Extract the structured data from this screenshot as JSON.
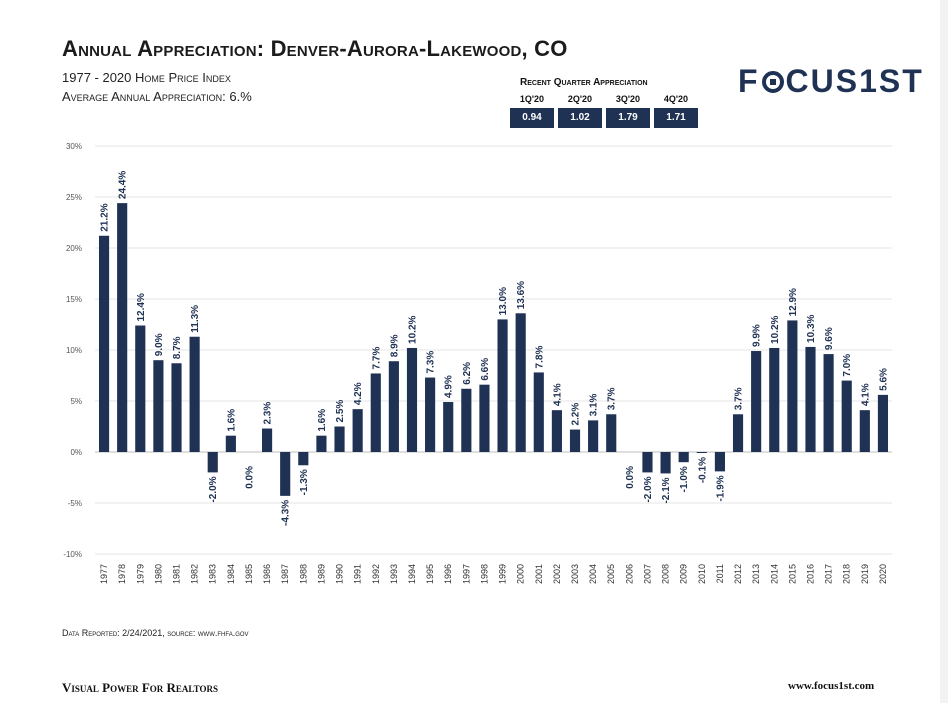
{
  "header": {
    "title": "Annual Appreciation: Denver-Aurora-Lakewood, CO",
    "subtitle1": "1977 - 2020 Home Price Index",
    "subtitle2": "Average Annual Appreciation: 6.%"
  },
  "recent_quarter": {
    "title": "Recent Quarter Appreciation",
    "quarters": [
      {
        "label": "1Q'20",
        "value": "0.94"
      },
      {
        "label": "2Q'20",
        "value": "1.02"
      },
      {
        "label": "3Q'20",
        "value": "1.79"
      },
      {
        "label": "4Q'20",
        "value": "1.71"
      }
    ]
  },
  "logo": {
    "text_before": "F",
    "text_after": "CUS1ST"
  },
  "footer": {
    "source": "Data Reported: 2/24/2021, source: www.fhfa.gov",
    "tagline": "Visual Power For Realtors",
    "site": "www.focus1st.com"
  },
  "colors": {
    "bar": "#1f3254",
    "grid": "#e6e6e6",
    "axis": "#bdbdbd"
  },
  "chart_data": {
    "type": "bar",
    "title": "Annual Appreciation: Denver-Aurora-Lakewood, CO",
    "xlabel": "",
    "ylabel": "",
    "ylim": [
      -10,
      30
    ],
    "yticks": [
      30,
      25,
      20,
      15,
      10,
      5,
      0,
      -5,
      -10
    ],
    "ytick_labels": [
      "30%",
      "25%",
      "20%",
      "15%",
      "10%",
      "5%",
      "0%",
      "-5%",
      "-10%"
    ],
    "grid": true,
    "categories": [
      "1977",
      "1978",
      "1979",
      "1980",
      "1981",
      "1982",
      "1983",
      "1984",
      "1985",
      "1986",
      "1987",
      "1988",
      "1989",
      "1990",
      "1991",
      "1992",
      "1993",
      "1994",
      "1995",
      "1996",
      "1997",
      "1998",
      "1999",
      "2000",
      "2001",
      "2002",
      "2003",
      "2004",
      "2005",
      "2006",
      "2007",
      "2008",
      "2009",
      "2010",
      "2011",
      "2012",
      "2013",
      "2014",
      "2015",
      "2016",
      "2017",
      "2018",
      "2019",
      "2020"
    ],
    "values": [
      21.2,
      24.4,
      12.4,
      9.0,
      8.7,
      11.3,
      -2.0,
      1.6,
      0.0,
      2.3,
      -4.3,
      -1.3,
      1.6,
      2.5,
      4.2,
      7.7,
      8.9,
      10.2,
      7.3,
      4.9,
      6.2,
      6.6,
      13.0,
      13.6,
      7.8,
      4.1,
      2.2,
      3.1,
      3.7,
      0.0,
      -2.0,
      -2.1,
      -1.0,
      -0.1,
      -1.9,
      3.7,
      9.9,
      10.2,
      12.9,
      10.3,
      9.6,
      7.0,
      4.1,
      5.6
    ],
    "data_labels": [
      "21.2%",
      "24.4%",
      "12.4%",
      "9.0%",
      "8.7%",
      "11.3%",
      "-2.0%",
      "1.6%",
      "0.0%",
      "2.3%",
      "-4.3%",
      "-1.3%",
      "1.6%",
      "2.5%",
      "4.2%",
      "7.7%",
      "8.9%",
      "10.2%",
      "7.3%",
      "4.9%",
      "6.2%",
      "6.6%",
      "13.0%",
      "13.6%",
      "7.8%",
      "4.1%",
      "2.2%",
      "3.1%",
      "3.7%",
      "0.0%",
      "-2.0%",
      "-2.1%",
      "-1.0%",
      "-0.1%",
      "-1.9%",
      "3.7%",
      "9.9%",
      "10.2%",
      "12.9%",
      "10.3%",
      "9.6%",
      "7.0%",
      "4.1%",
      "5.6%"
    ]
  }
}
